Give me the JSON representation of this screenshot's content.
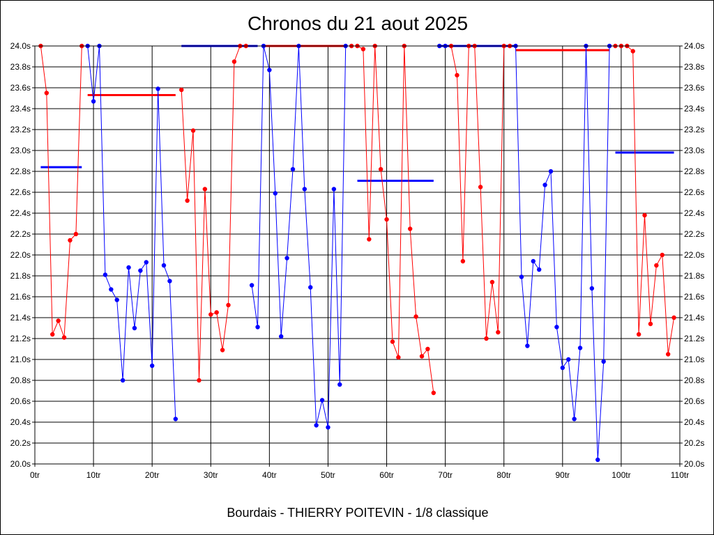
{
  "chart_data": {
    "type": "line",
    "title": "Chronos du 21 aout 2025",
    "subtitle": "Bourdais - THIERRY POITEVIN - 1/8 classique",
    "xlabel": "",
    "ylabel": "",
    "xlim": [
      0,
      110
    ],
    "ylim": [
      20.0,
      24.0
    ],
    "grid": true,
    "legend": "none",
    "x_ticks": [
      "0tr",
      "10tr",
      "20tr",
      "30tr",
      "40tr",
      "50tr",
      "60tr",
      "70tr",
      "80tr",
      "90tr",
      "100tr",
      "110tr"
    ],
    "y_ticks": [
      "20.0s",
      "20.2s",
      "20.4s",
      "20.6s",
      "20.8s",
      "21.0s",
      "21.2s",
      "21.4s",
      "21.6s",
      "21.8s",
      "22.0s",
      "22.2s",
      "22.4s",
      "22.6s",
      "22.8s",
      "23.0s",
      "23.2s",
      "23.4s",
      "23.6s",
      "23.8s",
      "24.0s"
    ],
    "colors": {
      "red": "#ff0000",
      "blue": "#0000ff",
      "grid": "#000000"
    },
    "series": [
      {
        "color": "red",
        "role": "laps",
        "x": [
          1,
          2,
          3,
          4,
          5,
          6,
          7,
          8
        ],
        "y": [
          24.0,
          23.55,
          21.24,
          21.37,
          21.21,
          22.14,
          22.2,
          24.0
        ]
      },
      {
        "color": "blue",
        "role": "laps",
        "x": [
          9,
          10,
          11,
          12,
          13,
          14,
          15,
          16,
          17,
          18,
          19,
          20,
          21,
          22,
          23,
          24
        ],
        "y": [
          24.0,
          23.47,
          24.0,
          21.81,
          21.67,
          21.57,
          20.8,
          21.88,
          21.3,
          21.85,
          21.93,
          20.94,
          23.59,
          21.9,
          21.75,
          20.43
        ]
      },
      {
        "color": "red",
        "role": "laps",
        "x": [
          25,
          26,
          27,
          28,
          29,
          30,
          31,
          32,
          33,
          34,
          35,
          36
        ],
        "y": [
          23.58,
          22.52,
          23.19,
          20.8,
          22.63,
          21.43,
          21.45,
          21.09,
          21.52,
          23.85,
          24.0,
          24.0
        ]
      },
      {
        "color": "blue",
        "role": "laps",
        "x": [
          37,
          38,
          39,
          40,
          41,
          42,
          43,
          44,
          45,
          46,
          47,
          48,
          49,
          50,
          51,
          52,
          53
        ],
        "y": [
          21.71,
          21.31,
          24.0,
          23.77,
          22.59,
          21.22,
          21.97,
          22.82,
          24.0,
          22.63,
          21.69,
          20.37,
          20.61,
          20.35,
          22.63,
          20.76,
          24.0
        ]
      },
      {
        "color": "red",
        "role": "laps",
        "x": [
          54,
          55,
          56,
          57,
          58,
          59,
          60,
          61,
          62,
          63,
          64,
          65,
          66,
          67,
          68
        ],
        "y": [
          24.0,
          24.0,
          23.97,
          22.15,
          24.0,
          22.82,
          22.34,
          21.17,
          21.02,
          24.0,
          22.25,
          21.41,
          21.03,
          21.1,
          20.68
        ]
      },
      {
        "color": "blue",
        "role": "laps",
        "x": [
          69,
          70
        ],
        "y": [
          24.0,
          24.0
        ]
      },
      {
        "color": "red",
        "role": "laps",
        "x": [
          71,
          72,
          73,
          74,
          75,
          76,
          77,
          78,
          79,
          80,
          81
        ],
        "y": [
          24.0,
          23.72,
          21.94,
          24.0,
          24.0,
          22.65,
          21.2,
          21.74,
          21.26,
          24.0,
          24.0
        ]
      },
      {
        "color": "blue",
        "role": "laps",
        "x": [
          82,
          83,
          84,
          85,
          86,
          87,
          88,
          89,
          90,
          91,
          92,
          93,
          94,
          95,
          96,
          97,
          98
        ],
        "y": [
          24.0,
          21.79,
          21.13,
          21.94,
          21.86,
          22.67,
          22.8,
          21.31,
          20.92,
          21.0,
          20.43,
          21.11,
          24.0,
          21.68,
          20.04,
          20.98,
          24.0
        ]
      },
      {
        "color": "red",
        "role": "laps",
        "x": [
          99,
          100,
          101,
          102,
          103,
          104,
          105,
          106,
          107,
          108,
          109
        ],
        "y": [
          24.0,
          24.0,
          24.0,
          23.95,
          21.24,
          22.38,
          21.34,
          21.9,
          22.0,
          21.05,
          21.4
        ]
      }
    ],
    "averages": [
      {
        "color": "blue",
        "x": [
          1,
          8
        ],
        "y": 22.84
      },
      {
        "color": "red",
        "x": [
          9,
          24
        ],
        "y": 23.53
      },
      {
        "color": "blue",
        "x": [
          25,
          38
        ],
        "y": 24.0
      },
      {
        "color": "red",
        "x": [
          39,
          53
        ],
        "y": 24.0
      },
      {
        "color": "blue",
        "x": [
          55,
          68
        ],
        "y": 22.71
      },
      {
        "color": "blue",
        "x": [
          69,
          82
        ],
        "y": 24.0
      },
      {
        "color": "red",
        "x": [
          82,
          98
        ],
        "y": 23.96
      },
      {
        "color": "blue",
        "x": [
          99,
          109
        ],
        "y": 22.98
      }
    ]
  }
}
